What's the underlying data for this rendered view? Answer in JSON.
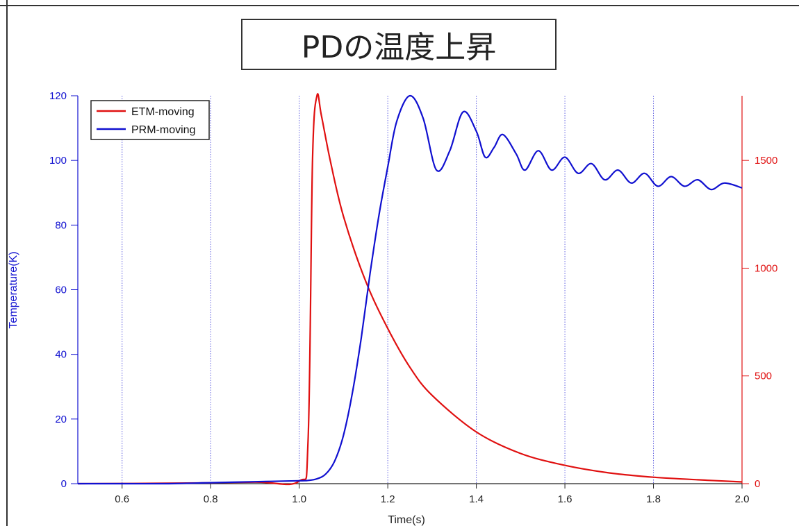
{
  "chart_data": {
    "type": "line",
    "title": "PDの温度上昇",
    "xlabel": "Time(s)",
    "ylabel_left": "Temperature(K)",
    "ylabel_right": "",
    "xlim": [
      0.5,
      2.0
    ],
    "ylim_left": [
      0,
      120
    ],
    "ylim_right": [
      0,
      1800
    ],
    "x_ticks": [
      0.6,
      0.8,
      1.0,
      1.2,
      1.4,
      1.6,
      1.8,
      2.0
    ],
    "x_tick_labels": [
      "0.6",
      "0.8",
      "1.0",
      "1.2",
      "1.4",
      "1.6",
      "1.8",
      "2.0"
    ],
    "y_left_ticks": [
      0,
      20,
      40,
      60,
      80,
      100,
      120
    ],
    "y_left_tick_labels": [
      "0",
      "20",
      "40",
      "60",
      "80",
      "100",
      "120"
    ],
    "y_right_ticks": [
      0,
      500,
      1000,
      1500
    ],
    "y_right_tick_labels": [
      "0",
      "500",
      "1000",
      "1500"
    ],
    "grid": "vertical dotted",
    "legend": "top-left",
    "colors": {
      "left_axis": "#1010d0",
      "right_axis": "#e01010",
      "grid": "#6060e0"
    },
    "series": [
      {
        "name": "ETM-moving",
        "color": "#e01010",
        "axis": "right",
        "x": [
          0.5,
          0.7,
          0.9,
          1.0,
          1.02,
          1.03,
          1.04,
          1.05,
          1.07,
          1.1,
          1.15,
          1.2,
          1.25,
          1.3,
          1.4,
          1.5,
          1.6,
          1.7,
          1.8,
          1.9,
          2.0
        ],
        "values": [
          0,
          2,
          7,
          12,
          200,
          1500,
          1800,
          1710,
          1500,
          1240,
          940,
          720,
          540,
          410,
          240,
          140,
          85,
          50,
          30,
          18,
          8
        ]
      },
      {
        "name": "PRM-moving",
        "color": "#1010d0",
        "axis": "left",
        "x": [
          0.5,
          0.6,
          0.7,
          0.8,
          0.9,
          1.0,
          1.02,
          1.04,
          1.06,
          1.08,
          1.1,
          1.12,
          1.14,
          1.16,
          1.18,
          1.2,
          1.22,
          1.25,
          1.28,
          1.31,
          1.34,
          1.37,
          1.4,
          1.42,
          1.44,
          1.46,
          1.49,
          1.51,
          1.54,
          1.57,
          1.6,
          1.63,
          1.66,
          1.69,
          1.72,
          1.75,
          1.78,
          1.81,
          1.84,
          1.87,
          1.9,
          1.93,
          1.96,
          2.0
        ],
        "values": [
          0,
          0,
          0,
          0.3,
          0.6,
          0.9,
          1.0,
          1.5,
          3,
          7,
          15,
          28,
          45,
          65,
          83,
          98,
          112,
          120,
          113,
          97,
          103,
          115,
          109,
          101,
          104,
          108,
          102,
          97,
          103,
          97,
          101,
          96,
          99,
          94,
          97,
          93,
          96,
          92,
          95,
          92,
          94,
          91,
          93,
          91.5
        ]
      }
    ]
  }
}
